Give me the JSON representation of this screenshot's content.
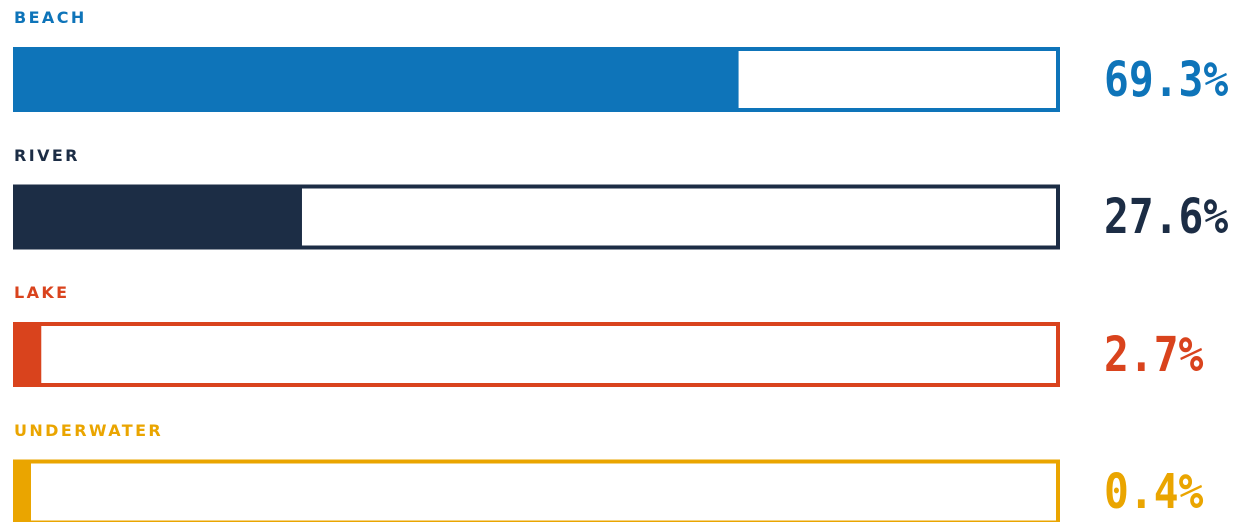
{
  "chart_data": {
    "type": "bar",
    "orientation": "horizontal",
    "categories": [
      "BEACH",
      "RIVER",
      "LAKE",
      "UNDERWATER"
    ],
    "values": [
      69.3,
      27.6,
      2.7,
      0.4
    ],
    "value_labels": [
      "69.3%",
      "27.6%",
      "2.7%",
      "0.4%"
    ],
    "colors": [
      "#0e74b9",
      "#1c2d45",
      "#d9431d",
      "#eaa500"
    ],
    "xlim": [
      0,
      100
    ],
    "title": "",
    "xlabel": "",
    "ylabel": ""
  }
}
